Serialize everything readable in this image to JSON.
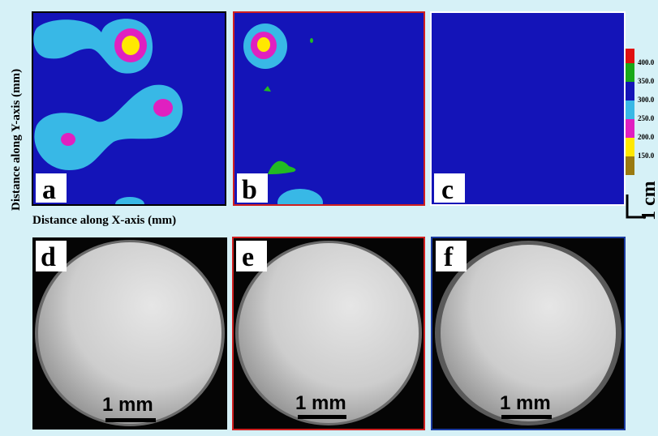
{
  "figure": {
    "y_axis_label": "Distance along Y-axis (mm)",
    "x_axis_label": "Distance along X-axis (mm)",
    "colorbar": {
      "labels": [
        "400.0",
        "350.0",
        "300.0",
        "250.0",
        "200.0",
        "150.0"
      ]
    },
    "cm_scale": "1 cm",
    "panels": [
      {
        "label": "a"
      },
      {
        "label": "b"
      },
      {
        "label": "c"
      },
      {
        "label": "d",
        "scale": "1 mm"
      },
      {
        "label": "e",
        "scale": "1 mm"
      },
      {
        "label": "f",
        "scale": "1 mm"
      }
    ]
  }
}
